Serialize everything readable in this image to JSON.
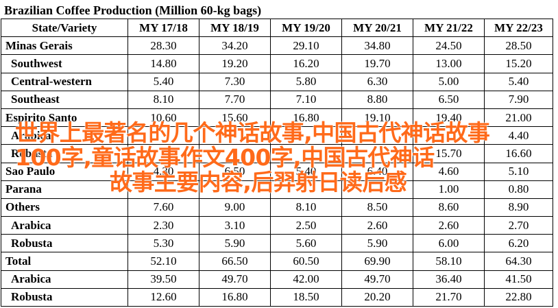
{
  "title": "Brazilian Coffee Production (Million 60-kg bags)",
  "columns": [
    "State/Variety",
    "MY 17/18",
    "MY 18/19",
    "MY 19/20",
    "MY 20/21",
    "MY 21/22",
    "MY 22/23"
  ],
  "rows": [
    {
      "label": "Minas Gerais",
      "level": "top",
      "values": [
        "28.30",
        "34.20",
        "29.10",
        "34.80",
        "24.50",
        "28.50"
      ]
    },
    {
      "label": "Southwest",
      "level": "sub",
      "values": [
        "14.80",
        "19.20",
        "16.20",
        "19.70",
        "13.00",
        "15.20"
      ]
    },
    {
      "label": "Central-western",
      "level": "sub",
      "values": [
        "5.40",
        "7.30",
        "5.80",
        "6.30",
        "5.00",
        "5.40"
      ]
    },
    {
      "label": "Southeast",
      "level": "sub",
      "values": [
        "8.10",
        "7.70",
        "7.10",
        "8.80",
        "6.50",
        "7.90"
      ]
    },
    {
      "label": "Espirito Santo",
      "level": "top",
      "values": [
        "10.60",
        "15.60",
        "16.80",
        "19.10",
        "19.40",
        "21.00"
      ]
    },
    {
      "label": "Arabica",
      "level": "sub",
      "values": [
        "",
        "",
        "",
        "",
        "",
        "4.40"
      ]
    },
    {
      "label": "Robusta",
      "level": "sub",
      "values": [
        "",
        "",
        "",
        "",
        "15.70",
        "16.60"
      ]
    },
    {
      "label": "Sao Paulo",
      "level": "top",
      "values": [
        "4.30",
        "6.50",
        "5.40",
        "6.40",
        "4.60",
        "5.10"
      ]
    },
    {
      "label": "Parana",
      "level": "top",
      "values": [
        "",
        "",
        "",
        "",
        "1.00",
        "0.80"
      ]
    },
    {
      "label": "Others",
      "level": "top",
      "values": [
        "7.60",
        "9.00",
        "8.10",
        "8.50",
        "8.60",
        "8.90"
      ]
    },
    {
      "label": "Arabica",
      "level": "sub",
      "values": [
        "2.30",
        "3.10",
        "2.50",
        "2.60",
        "2.60",
        "2.70"
      ]
    },
    {
      "label": "Robusta",
      "level": "sub",
      "values": [
        "5.30",
        "5.90",
        "5.60",
        "5.90",
        "6.00",
        "6.20"
      ]
    },
    {
      "label": "Total",
      "level": "top",
      "values": [
        "52.10",
        "66.50",
        "60.50",
        "69.90",
        "58.10",
        "64.30"
      ]
    },
    {
      "label": "Arabica",
      "level": "sub",
      "values": [
        "39.50",
        "49.70",
        "42.00",
        "49.70",
        "36.40",
        "41.50"
      ]
    },
    {
      "label": "Robusta",
      "level": "sub",
      "values": [
        "12.60",
        "16.80",
        "18.50",
        "20.20",
        "21.70",
        "22.80"
      ]
    }
  ],
  "overlay": {
    "line1": "世界上最著名的几个神话故事,中国古代神话故事",
    "line2": "100字,童话故事作文400字,中国古代神话",
    "line3": "故事主要内容,后羿射日读后感",
    "color": "#ff6a1a"
  }
}
